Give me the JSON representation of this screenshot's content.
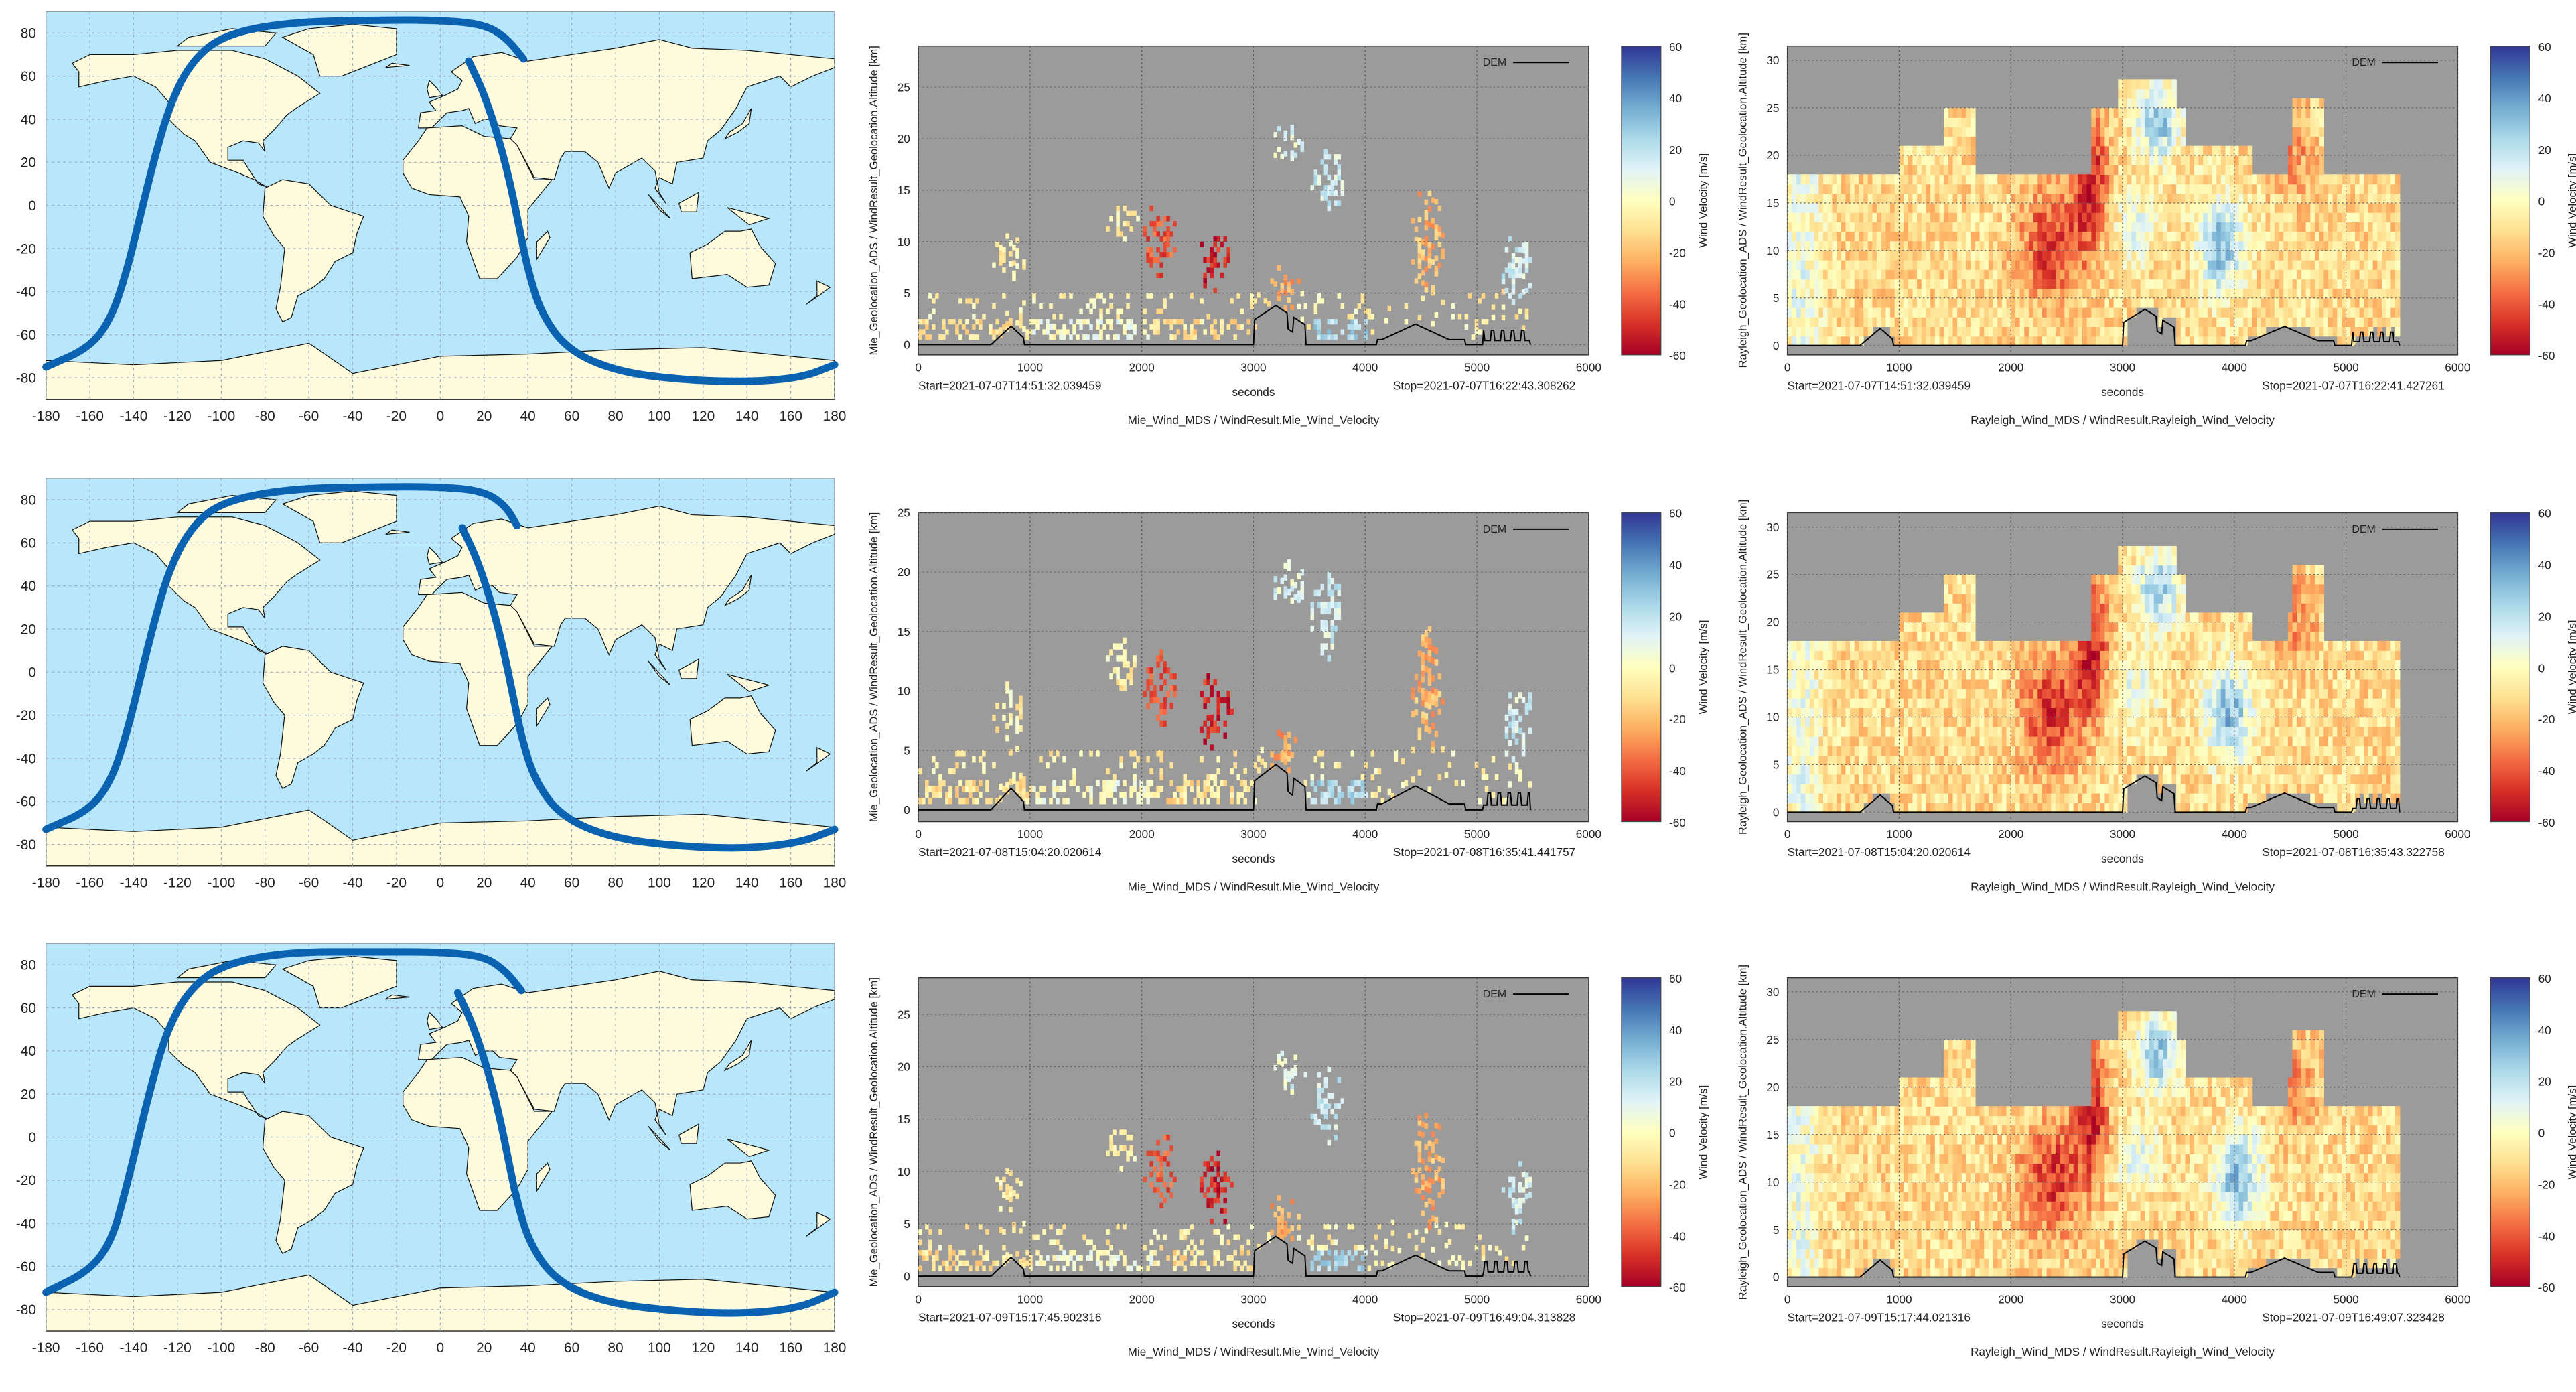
{
  "figure": {
    "rows": [
      {
        "map": {
          "type": "map",
          "lon_ticks": [
            -180,
            -160,
            -140,
            -120,
            -100,
            -80,
            -60,
            -40,
            -20,
            0,
            20,
            40,
            60,
            80,
            100,
            120,
            140,
            160,
            180
          ],
          "lat_ticks": [
            80,
            60,
            40,
            20,
            0,
            -20,
            -40,
            -60,
            -80
          ],
          "ocean_color": "#b8e6fa",
          "land_color": "#fdfbdc",
          "track_color": "#0b62b0",
          "track": [
            [
              [
                -180,
                -75
              ],
              [
                -160,
                -66
              ],
              [
                -150,
                -52
              ],
              [
                -143,
                -30
              ],
              [
                -137,
                -5
              ],
              [
                -131,
                20
              ],
              [
                -124,
                45
              ],
              [
                -115,
                65
              ],
              [
                -100,
                79
              ],
              [
                -70,
                85
              ],
              [
                -30,
                86
              ],
              [
                0,
                86
              ],
              [
                20,
                84
              ],
              [
                30,
                78
              ],
              [
                38,
                68
              ]
            ],
            [
              [
                13,
                67
              ],
              [
                20,
                52
              ],
              [
                27,
                30
              ],
              [
                32,
                10
              ],
              [
                36,
                -10
              ],
              [
                40,
                -30
              ],
              [
                46,
                -50
              ],
              [
                58,
                -67
              ],
              [
                80,
                -77
              ],
              [
                110,
                -81
              ],
              [
                140,
                -82
              ],
              [
                165,
                -80
              ],
              [
                180,
                -74
              ]
            ]
          ]
        },
        "mie": {
          "type": "heatmap",
          "ylabel": "Mie_Geolocation_ADS / WindResult_Geolocation.Altitude [km]",
          "xlabel": "seconds",
          "title": "Mie_Wind_MDS / WindResult.Mie_Wind_Velocity",
          "xlim": [
            0,
            6000
          ],
          "xticks": [
            "0",
            "1000",
            "2000",
            "3000",
            "4000",
            "5000",
            "6000"
          ],
          "ylim": [
            -1,
            29
          ],
          "yticks": [
            "0",
            "5",
            "10",
            "15",
            "20",
            "25"
          ],
          "colorbar": {
            "label": "Wind Velocity [m/s]",
            "range": [
              -60,
              60
            ],
            "ticks": [
              "60",
              "40",
              "20",
              "0",
              "-20",
              "-40",
              "-60"
            ]
          },
          "legend": {
            "label": "DEM",
            "position": "top-right"
          },
          "start": "Start=2021-07-07T14:51:32.039459",
          "stop": "Stop=2021-07-07T16:22:43.308262"
        },
        "rayleigh": {
          "type": "heatmap",
          "ylabel": "Rayleigh_Geolocation_ADS / WindResult_Geolocation.Altitude [km]",
          "xlabel": "seconds",
          "title": "Rayleigh_Wind_MDS / WindResult.Rayleigh_Wind_Velocity",
          "xlim": [
            0,
            6000
          ],
          "xticks": [
            "0",
            "1000",
            "2000",
            "3000",
            "4000",
            "5000",
            "6000"
          ],
          "ylim": [
            -1,
            31.5
          ],
          "yticks": [
            "0",
            "5",
            "10",
            "15",
            "20",
            "25",
            "30"
          ],
          "colorbar": {
            "label": "Wind Velocity [m/s]",
            "range": [
              -60,
              60
            ],
            "ticks": [
              "60",
              "40",
              "20",
              "0",
              "-20",
              "-40",
              "-60"
            ]
          },
          "legend": {
            "label": "DEM",
            "position": "top-right"
          },
          "start": "Start=2021-07-07T14:51:32.039459",
          "stop": "Stop=2021-07-07T16:22:41.427261"
        }
      },
      {
        "map": {
          "type": "map",
          "lon_ticks": [
            -180,
            -160,
            -140,
            -120,
            -100,
            -80,
            -60,
            -40,
            -20,
            0,
            20,
            40,
            60,
            80,
            100,
            120,
            140,
            160,
            180
          ],
          "lat_ticks": [
            80,
            60,
            40,
            20,
            0,
            -20,
            -40,
            -60,
            -80
          ],
          "ocean_color": "#b8e6fa",
          "land_color": "#fdfbdc",
          "track_color": "#0b62b0",
          "track": [
            [
              [
                -180,
                -73
              ],
              [
                -160,
                -64
              ],
              [
                -150,
                -50
              ],
              [
                -143,
                -28
              ],
              [
                -137,
                -3
              ],
              [
                -131,
                22
              ],
              [
                -124,
                47
              ],
              [
                -114,
                67
              ],
              [
                -100,
                79
              ],
              [
                -70,
                85
              ],
              [
                -30,
                86
              ],
              [
                0,
                86
              ],
              [
                20,
                84
              ],
              [
                30,
                77
              ],
              [
                35,
                68
              ]
            ],
            [
              [
                10,
                67
              ],
              [
                17,
                52
              ],
              [
                24,
                30
              ],
              [
                29,
                10
              ],
              [
                33,
                -10
              ],
              [
                37,
                -30
              ],
              [
                43,
                -50
              ],
              [
                55,
                -67
              ],
              [
                78,
                -77
              ],
              [
                110,
                -81
              ],
              [
                140,
                -82
              ],
              [
                165,
                -79
              ],
              [
                180,
                -73
              ]
            ]
          ]
        },
        "mie": {
          "type": "heatmap",
          "ylabel": "Mie_Geolocation_ADS / WindResult_Geolocation.Altitude [km]",
          "xlabel": "seconds",
          "title": "Mie_Wind_MDS / WindResult.Mie_Wind_Velocity",
          "xlim": [
            0,
            6000
          ],
          "xticks": [
            "0",
            "1000",
            "2000",
            "3000",
            "4000",
            "5000",
            "6000"
          ],
          "ylim": [
            -1,
            25
          ],
          "yticks": [
            "0",
            "5",
            "10",
            "15",
            "20",
            "25"
          ],
          "colorbar": {
            "label": "Wind Velocity [m/s]",
            "range": [
              -60,
              60
            ],
            "ticks": [
              "60",
              "40",
              "20",
              "0",
              "-20",
              "-40",
              "-60"
            ]
          },
          "legend": {
            "label": "DEM",
            "position": "top-right"
          },
          "start": "Start=2021-07-08T15:04:20.020614",
          "stop": "Stop=2021-07-08T16:35:41.441757"
        },
        "rayleigh": {
          "type": "heatmap",
          "ylabel": "Rayleigh_Geolocation_ADS / WindResult_Geolocation.Altitude [km]",
          "xlabel": "seconds",
          "title": "Rayleigh_Wind_MDS / WindResult.Rayleigh_Wind_Velocity",
          "xlim": [
            0,
            6000
          ],
          "xticks": [
            "0",
            "1000",
            "2000",
            "3000",
            "4000",
            "5000",
            "6000"
          ],
          "ylim": [
            -1,
            31.5
          ],
          "yticks": [
            "0",
            "5",
            "10",
            "15",
            "20",
            "25",
            "30"
          ],
          "colorbar": {
            "label": "Wind Velocity [m/s]",
            "range": [
              -60,
              60
            ],
            "ticks": [
              "60",
              "40",
              "20",
              "0",
              "-20",
              "-40",
              "-60"
            ]
          },
          "legend": {
            "label": "DEM",
            "position": "top-right"
          },
          "start": "Start=2021-07-08T15:04:20.020614",
          "stop": "Stop=2021-07-08T16:35:43.322758"
        }
      },
      {
        "map": {
          "type": "map",
          "lon_ticks": [
            -180,
            -160,
            -140,
            -120,
            -100,
            -80,
            -60,
            -40,
            -20,
            0,
            20,
            40,
            60,
            80,
            100,
            120,
            140,
            160,
            180
          ],
          "lat_ticks": [
            80,
            60,
            40,
            20,
            0,
            -20,
            -40,
            -60,
            -80
          ],
          "ocean_color": "#b8e6fa",
          "land_color": "#fdfbdc",
          "track_color": "#0b62b0",
          "track": [
            [
              [
                -180,
                -72
              ],
              [
                -160,
                -62
              ],
              [
                -150,
                -48
              ],
              [
                -144,
                -26
              ],
              [
                -138,
                -1
              ],
              [
                -132,
                24
              ],
              [
                -125,
                49
              ],
              [
                -115,
                68
              ],
              [
                -100,
                80
              ],
              [
                -70,
                86
              ],
              [
                -30,
                86
              ],
              [
                0,
                86
              ],
              [
                20,
                84
              ],
              [
                30,
                77
              ],
              [
                37,
                68
              ]
            ],
            [
              [
                8,
                67
              ],
              [
                15,
                52
              ],
              [
                22,
                30
              ],
              [
                27,
                10
              ],
              [
                31,
                -10
              ],
              [
                35,
                -30
              ],
              [
                41,
                -50
              ],
              [
                53,
                -67
              ],
              [
                76,
                -77
              ],
              [
                110,
                -81
              ],
              [
                140,
                -82
              ],
              [
                165,
                -79
              ],
              [
                180,
                -72
              ]
            ]
          ]
        },
        "mie": {
          "type": "heatmap",
          "ylabel": "Mie_Geolocation_ADS / WindResult_Geolocation.Altitude [km]",
          "xlabel": "seconds",
          "title": "Mie_Wind_MDS / WindResult.Mie_Wind_Velocity",
          "xlim": [
            0,
            6000
          ],
          "xticks": [
            "0",
            "1000",
            "2000",
            "3000",
            "4000",
            "5000",
            "6000"
          ],
          "ylim": [
            -1,
            28.5
          ],
          "yticks": [
            "0",
            "5",
            "10",
            "15",
            "20",
            "25"
          ],
          "colorbar": {
            "label": "Wind Velocity [m/s]",
            "range": [
              -60,
              60
            ],
            "ticks": [
              "60",
              "40",
              "20",
              "0",
              "-20",
              "-40",
              "-60"
            ]
          },
          "legend": {
            "label": "DEM",
            "position": "top-right"
          },
          "start": "Start=2021-07-09T15:17:45.902316",
          "stop": "Stop=2021-07-09T16:49:04.313828"
        },
        "rayleigh": {
          "type": "heatmap",
          "ylabel": "Rayleigh_Geolocation_ADS / WindResult_Geolocation.Altitude [km]",
          "xlabel": "seconds",
          "title": "Rayleigh_Wind_MDS / WindResult.Rayleigh_Wind_Velocity",
          "xlim": [
            0,
            6000
          ],
          "xticks": [
            "0",
            "1000",
            "2000",
            "3000",
            "4000",
            "5000",
            "6000"
          ],
          "ylim": [
            -1,
            31.5
          ],
          "yticks": [
            "0",
            "5",
            "10",
            "15",
            "20",
            "25",
            "30"
          ],
          "colorbar": {
            "label": "Wind Velocity [m/s]",
            "range": [
              -60,
              60
            ],
            "ticks": [
              "60",
              "40",
              "20",
              "0",
              "-20",
              "-40",
              "-60"
            ]
          },
          "legend": {
            "label": "DEM",
            "position": "top-right"
          },
          "start": "Start=2021-07-09T15:17:44.021316",
          "stop": "Stop=2021-07-09T16:49:07.323428"
        }
      }
    ]
  },
  "chart_data": [
    {
      "type": "heatmap",
      "panel": "Mie wind velocity, 2021-07-07",
      "xlim": [
        0,
        6000
      ],
      "ylim": [
        -1,
        29
      ],
      "zrange": [
        -60,
        60
      ],
      "data_extent_seconds": [
        0,
        5500
      ]
    },
    {
      "type": "heatmap",
      "panel": "Rayleigh wind velocity, 2021-07-07",
      "xlim": [
        0,
        6000
      ],
      "ylim": [
        -1,
        31.5
      ],
      "zrange": [
        -60,
        60
      ],
      "data_extent_seconds": [
        0,
        5500
      ]
    },
    {
      "type": "heatmap",
      "panel": "Mie wind velocity, 2021-07-08",
      "xlim": [
        0,
        6000
      ],
      "ylim": [
        -1,
        25
      ],
      "zrange": [
        -60,
        60
      ],
      "data_extent_seconds": [
        0,
        5500
      ]
    },
    {
      "type": "heatmap",
      "panel": "Rayleigh wind velocity, 2021-07-08",
      "xlim": [
        0,
        6000
      ],
      "ylim": [
        -1,
        31.5
      ],
      "zrange": [
        -60,
        60
      ],
      "data_extent_seconds": [
        0,
        5500
      ]
    },
    {
      "type": "heatmap",
      "panel": "Mie wind velocity, 2021-07-09",
      "xlim": [
        0,
        6000
      ],
      "ylim": [
        -1,
        28.5
      ],
      "zrange": [
        -60,
        60
      ],
      "data_extent_seconds": [
        0,
        5500
      ]
    },
    {
      "type": "heatmap",
      "panel": "Rayleigh wind velocity, 2021-07-09",
      "xlim": [
        0,
        6000
      ],
      "ylim": [
        -1,
        31.5
      ],
      "zrange": [
        -60,
        60
      ],
      "data_extent_seconds": [
        0,
        5500
      ]
    }
  ]
}
